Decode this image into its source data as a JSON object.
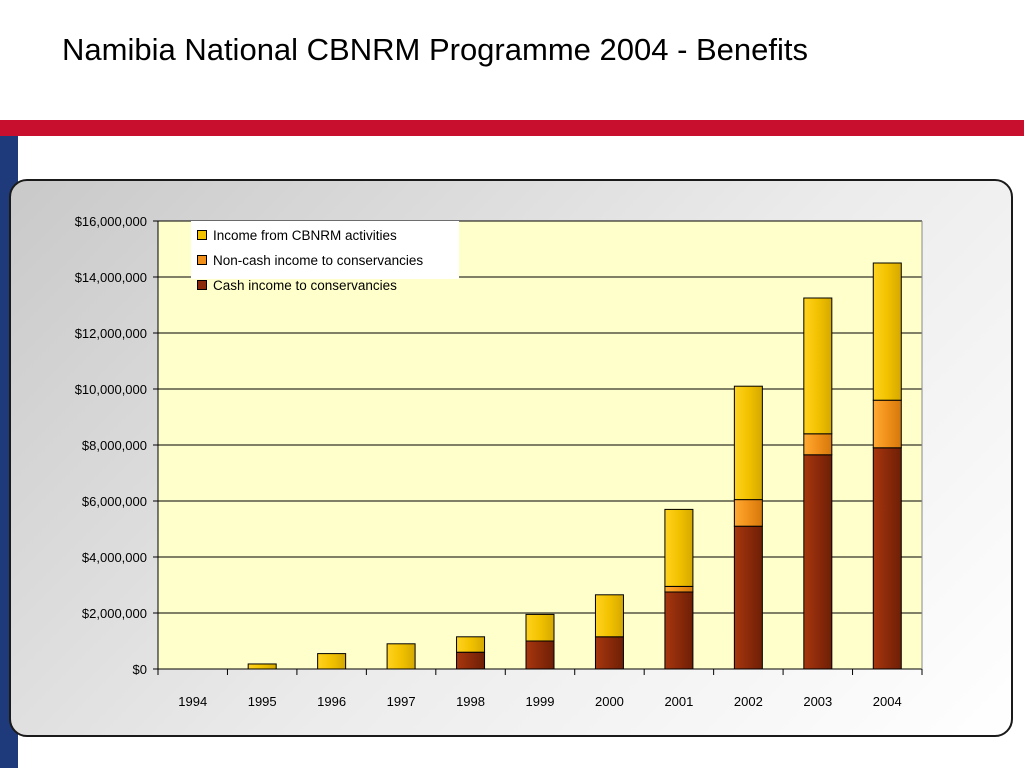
{
  "title": "Namibia National CBNRM Programme 2004 - Benefits",
  "colors": {
    "title_rule": "#c8102e",
    "left_bar": "#1f3a7a",
    "plot_bg": "#ffffcc",
    "grid": "#000000",
    "legend_bg": "#ffffff"
  },
  "chart_data": {
    "type": "bar",
    "stacked": true,
    "title": "",
    "xlabel": "",
    "ylabel": "",
    "categories": [
      "1994",
      "1995",
      "1996",
      "1997",
      "1998",
      "1999",
      "2000",
      "2001",
      "2002",
      "2003",
      "2004"
    ],
    "series": [
      {
        "name": "Cash income to conservancies",
        "color": "#8b2a0a",
        "values": [
          0,
          0,
          0,
          0,
          600000,
          1000000,
          1150000,
          2750000,
          5100000,
          7650000,
          7900000
        ]
      },
      {
        "name": "Non-cash income to conservancies",
        "color": "#f0901a",
        "values": [
          0,
          0,
          0,
          0,
          0,
          0,
          0,
          200000,
          950000,
          750000,
          1700000
        ]
      },
      {
        "name": "Income from CBNRM activities",
        "color": "#f2c200",
        "values": [
          0,
          180000,
          550000,
          900000,
          550000,
          950000,
          1500000,
          2750000,
          4050000,
          4850000,
          4900000
        ]
      }
    ],
    "legend_order": [
      "Income from CBNRM activities",
      "Non-cash income to conservancies",
      "Cash income to conservancies"
    ],
    "ylim": [
      0,
      16000000
    ],
    "yticks": [
      "$0",
      "$2,000,000",
      "$4,000,000",
      "$6,000,000",
      "$8,000,000",
      "$10,000,000",
      "$12,000,000",
      "$14,000,000",
      "$16,000,000"
    ],
    "grid": true,
    "legend_position": "top-left"
  }
}
